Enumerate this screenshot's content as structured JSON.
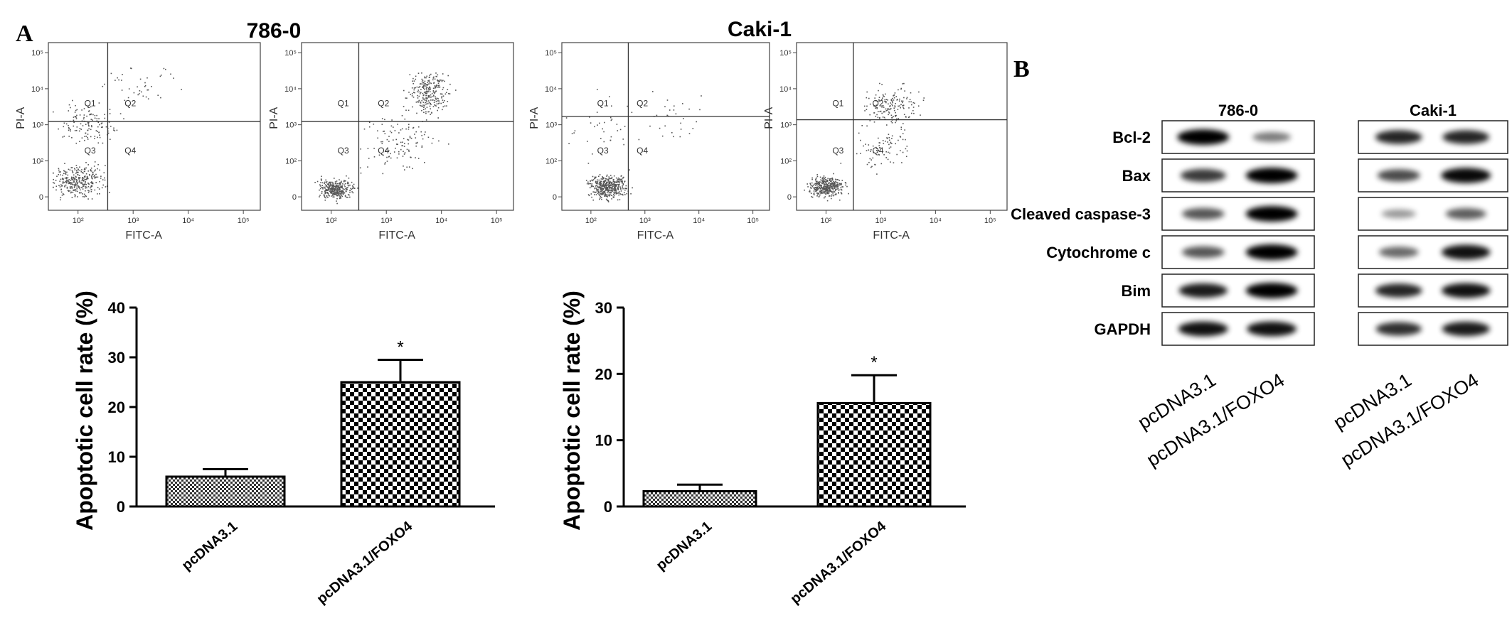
{
  "panel_labels": {
    "a": "A",
    "b": "B"
  },
  "flow": {
    "xlabel": "FITC-A",
    "ylabel": "PI-A",
    "x_ticks": [
      "10²",
      "10³",
      "10⁴",
      "10⁵"
    ],
    "y_ticks": [
      "10⁵",
      "10⁴",
      "10³",
      "10²",
      "0"
    ],
    "quadrants": [
      "Q1",
      "Q2",
      "Q3",
      "Q4"
    ],
    "groups": [
      {
        "title": "786-0"
      },
      {
        "title": "Caki-1"
      }
    ]
  },
  "chart_data": [
    {
      "type": "bar",
      "title": "",
      "xlabel": "",
      "ylabel": "Apoptotic cell rate (%)",
      "categories": [
        "pcDNA3.1",
        "pcDNA3.1/FOXO4"
      ],
      "values": [
        6,
        25
      ],
      "errors": [
        1.5,
        4.5
      ],
      "significance": [
        "",
        "*"
      ],
      "ylim": [
        0,
        40
      ],
      "yticks": [
        0,
        10,
        20,
        30,
        40
      ],
      "grid": false
    },
    {
      "type": "bar",
      "title": "",
      "xlabel": "",
      "ylabel": "Apoptotic cell rate (%)",
      "categories": [
        "pcDNA3.1",
        "pcDNA3.1/FOXO4"
      ],
      "values": [
        2.3,
        15.6
      ],
      "errors": [
        1,
        4.2
      ],
      "significance": [
        "",
        "*"
      ],
      "ylim": [
        0,
        30
      ],
      "yticks": [
        0,
        10,
        20,
        30
      ],
      "grid": false
    }
  ],
  "western_blot": {
    "proteins": [
      "Bcl-2",
      "Bax",
      "Cleaved caspase-3",
      "Cytochrome c",
      "Bim",
      "GAPDH"
    ],
    "groups": [
      {
        "title": "786-0",
        "lanes": [
          "pcDNA3.1",
          "pcDNA3.1/FOXO4"
        ],
        "intensity": [
          [
            1.0,
            0.35
          ],
          [
            0.7,
            1.0
          ],
          [
            0.55,
            1.0
          ],
          [
            0.55,
            1.0
          ],
          [
            0.85,
            1.0
          ],
          [
            0.9,
            0.9
          ]
        ]
      },
      {
        "title": "Caki-1",
        "lanes": [
          "pcDNA3.1",
          "pcDNA3.1/FOXO4"
        ],
        "intensity": [
          [
            0.8,
            0.8
          ],
          [
            0.6,
            0.95
          ],
          [
            0.2,
            0.5
          ],
          [
            0.45,
            0.9
          ],
          [
            0.8,
            0.9
          ],
          [
            0.75,
            0.85
          ]
        ]
      }
    ]
  }
}
